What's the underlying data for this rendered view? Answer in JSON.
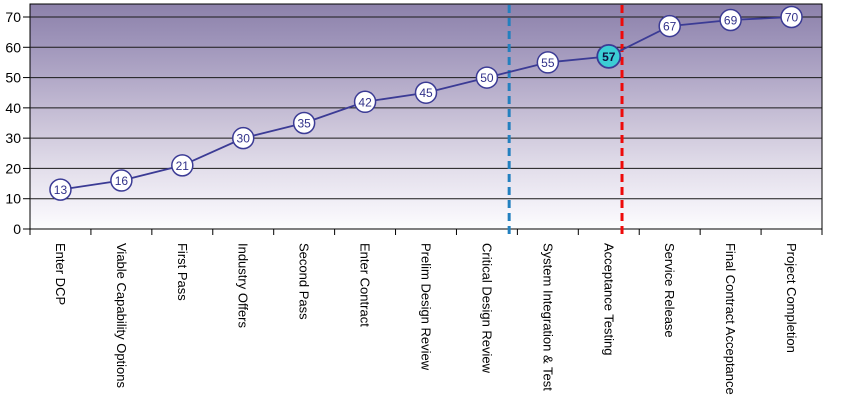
{
  "chart_data": {
    "type": "line",
    "title": "",
    "categories": [
      "Enter DCP",
      "Viable Capability Options",
      "First Pass",
      "Industry Offers",
      "Second Pass",
      "Enter Contract",
      "Prelim Design Review",
      "Critical Design Review",
      "System Integration & Test",
      "Acceptance Testing",
      "Service Release",
      "Final Contract Acceptance",
      "Project Completion"
    ],
    "values": [
      13,
      16,
      21,
      30,
      35,
      42,
      45,
      50,
      55,
      57,
      67,
      69,
      70
    ],
    "point_labels": [
      "13",
      "16",
      "21",
      "30",
      "35",
      "42",
      "45",
      "50",
      "55",
      "57",
      "67",
      "69",
      "70"
    ],
    "xlabel": "",
    "ylabel": "",
    "ylim": [
      0,
      70
    ],
    "y_ticks": [
      0,
      10,
      20,
      30,
      40,
      50,
      60,
      70
    ],
    "y_tick_labels": [
      "0",
      "10",
      "20",
      "30",
      "40",
      "50",
      "60",
      "70"
    ],
    "grid": true,
    "legend": "none",
    "marker_style": "circle-with-value",
    "highlight_point": {
      "index": 9,
      "category": "Acceptance Testing",
      "value": 57,
      "fill": "#3bcdd4",
      "text_color": "#101042"
    },
    "reference_lines": [
      {
        "name": "blue-dashed-line",
        "color": "#2380bf",
        "style": "dashed",
        "x_ratio": 0.605
      },
      {
        "name": "red-dashed-line",
        "color": "#ee0a0a",
        "style": "dashed",
        "x_ratio": 0.7475
      }
    ],
    "colors": {
      "series_line": "#3b3b95",
      "marker_fill": "#ffffff",
      "marker_border": "#3b3b95",
      "marker_text": "#32328a",
      "gridline": "#1a1a1a",
      "axis": "#000000",
      "tick_label": "#000000",
      "plot_gradient": [
        "#8c81aa",
        "#9c92b8",
        "#b4abc9",
        "#cdc6da",
        "#e4e0ec",
        "#f5f3f9",
        "#fdfdfe"
      ]
    }
  }
}
